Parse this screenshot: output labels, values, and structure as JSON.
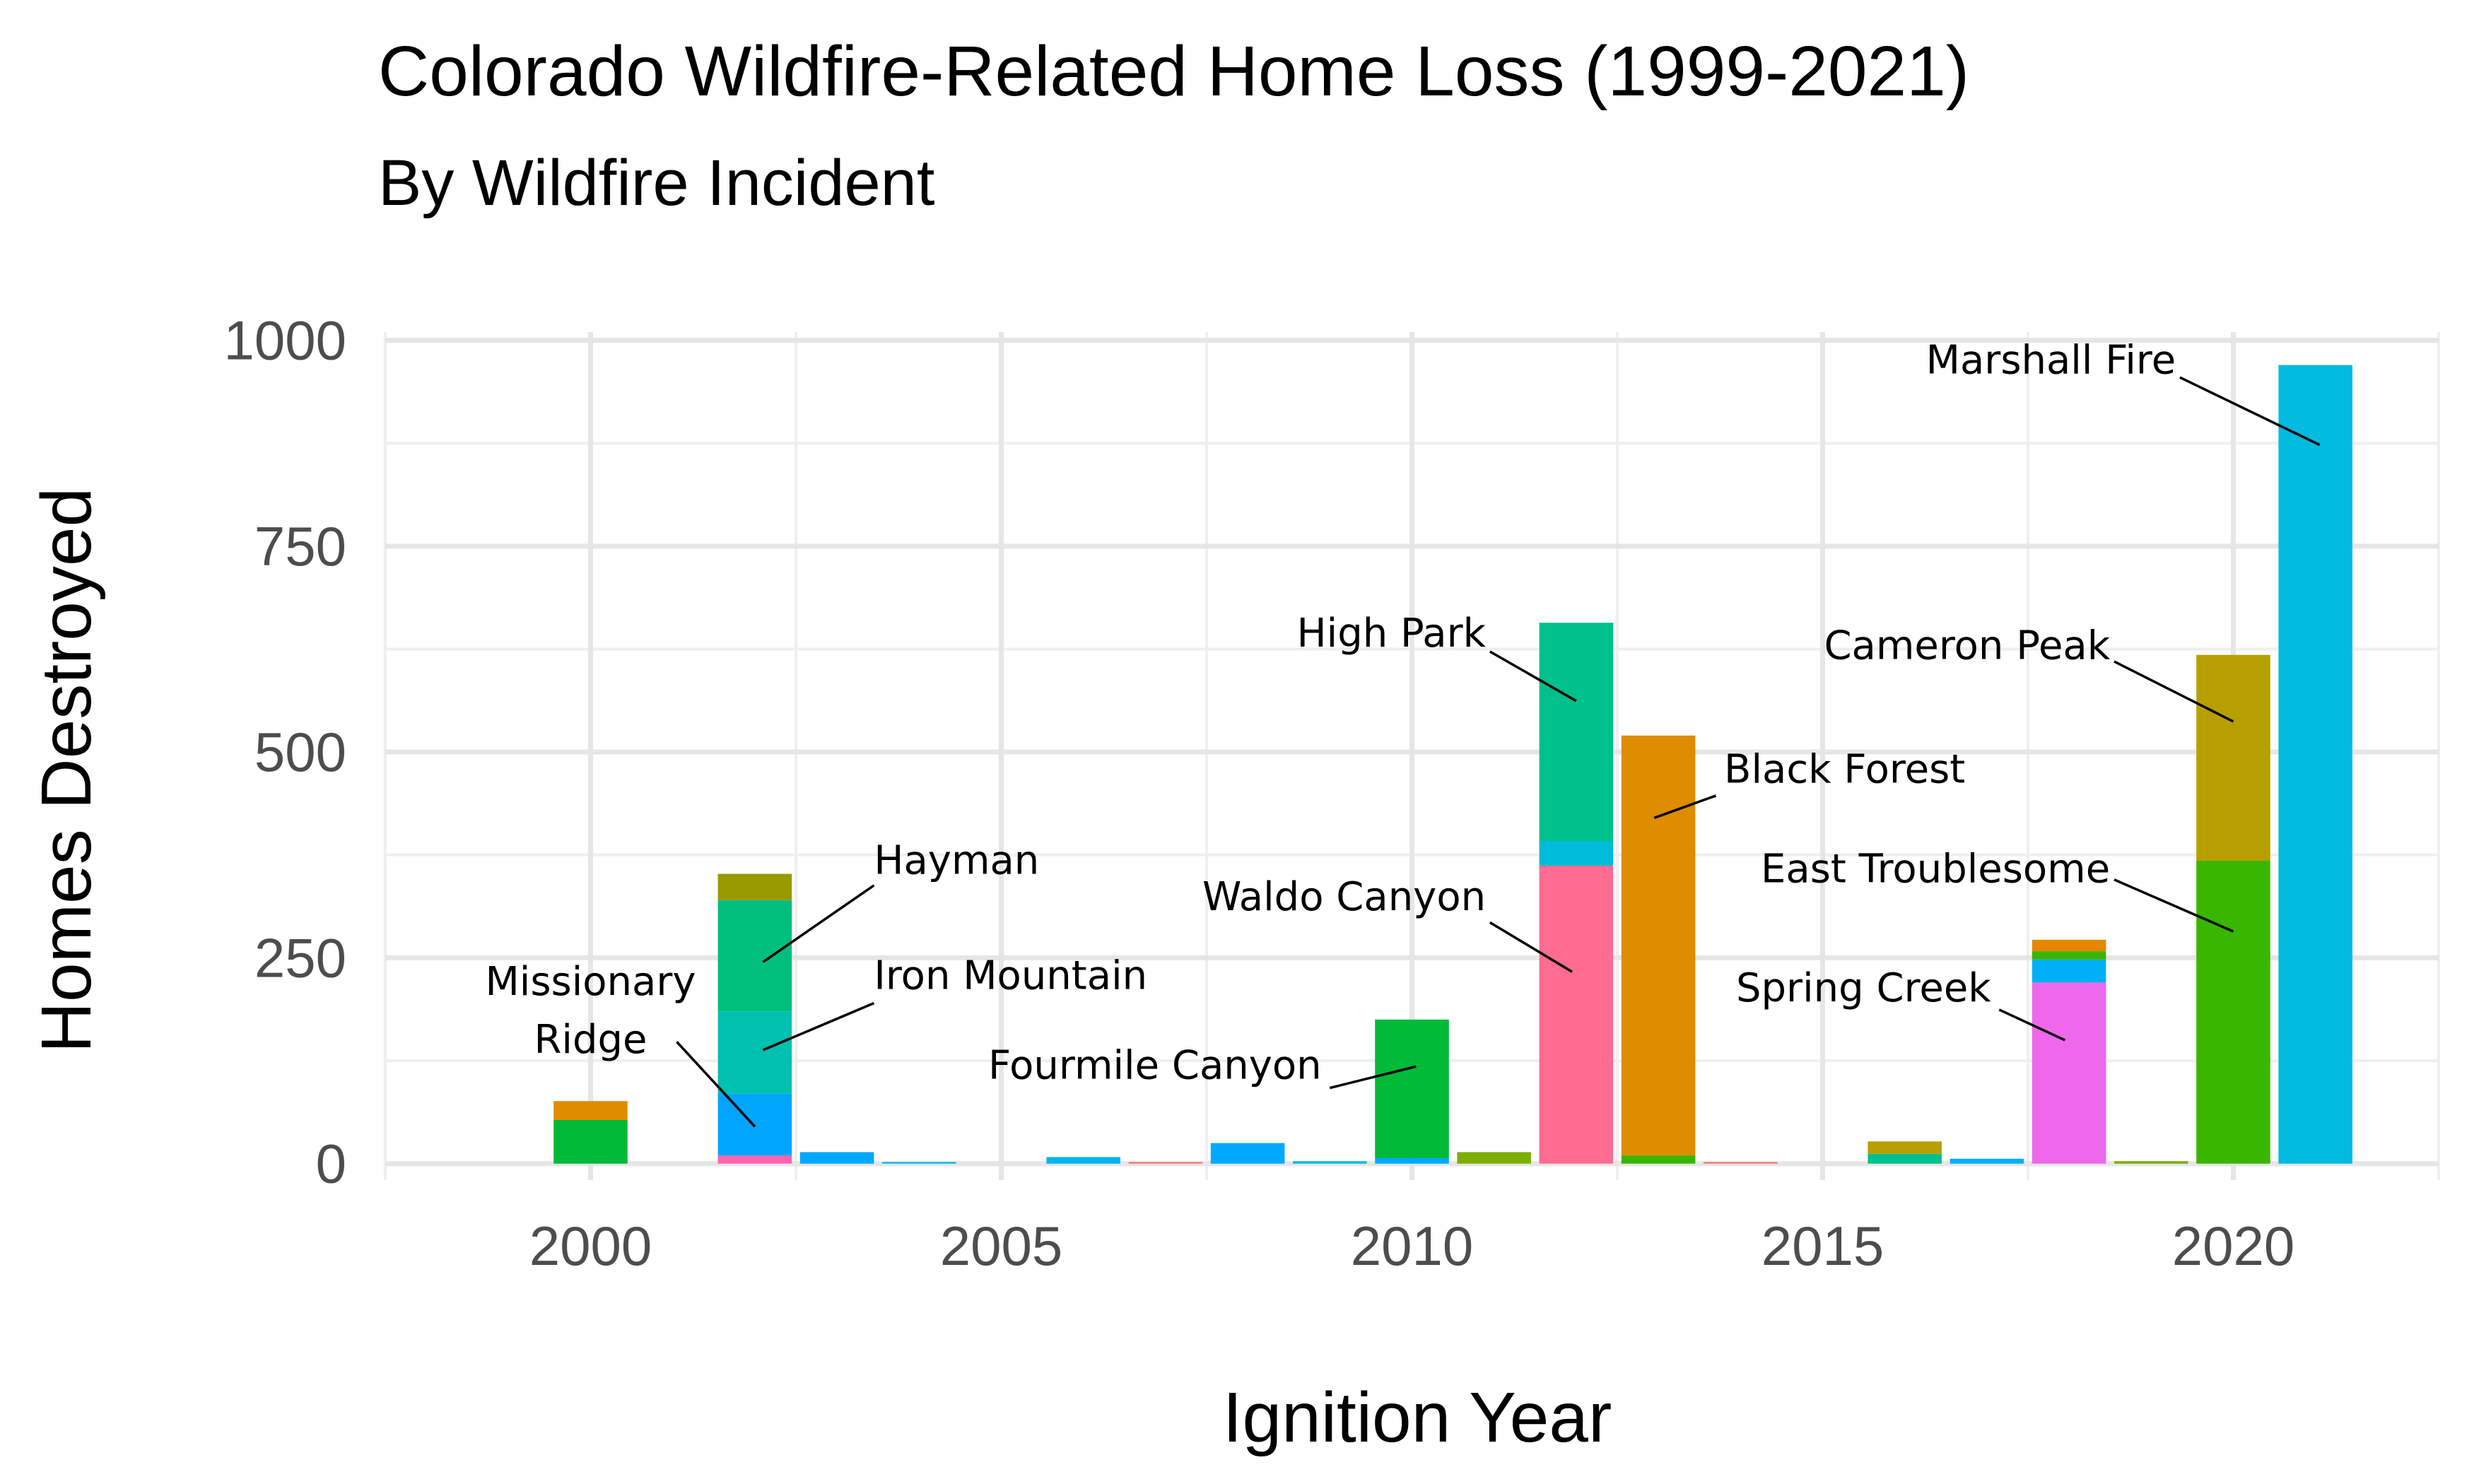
{
  "chart_data": {
    "type": "bar",
    "stacked": true,
    "title": "Colorado Wildfire-Related Home Loss (1999-2021)",
    "subtitle": "By Wildfire Incident",
    "xlabel": "Ignition Year",
    "ylabel": "Homes Destroyed",
    "xlim": [
      1997.5,
      2022.5
    ],
    "ylim": [
      -20,
      1010
    ],
    "x_ticks": [
      2000,
      2005,
      2010,
      2015,
      2020
    ],
    "y_ticks": [
      0,
      250,
      500,
      750,
      1000
    ],
    "grid": true,
    "legend": "none",
    "bars": [
      {
        "year": 2000,
        "segments": [
          {
            "value": 53,
            "color": "#00ba38"
          },
          {
            "value": 23,
            "color": "#de8c00"
          }
        ]
      },
      {
        "year": 2002,
        "segments": [
          {
            "value": 10,
            "color": "#ff64b0"
          },
          {
            "value": 75,
            "color": "#00a5ff"
          },
          {
            "value": 100,
            "color": "#00c0af"
          },
          {
            "value": 135,
            "color": "#00bf7d"
          },
          {
            "value": 32,
            "color": "#999900"
          }
        ]
      },
      {
        "year": 2003,
        "segments": [
          {
            "value": 14,
            "color": "#00a9ff"
          }
        ]
      },
      {
        "year": 2004,
        "segments": [
          {
            "value": 2,
            "color": "#00b8e7"
          }
        ]
      },
      {
        "year": 2006,
        "segments": [
          {
            "value": 8,
            "color": "#00b4f0"
          }
        ]
      },
      {
        "year": 2007,
        "segments": [
          {
            "value": 2,
            "color": "#f8766d"
          }
        ]
      },
      {
        "year": 2008,
        "segments": [
          {
            "value": 25,
            "color": "#00a9ff"
          }
        ]
      },
      {
        "year": 2009,
        "segments": [
          {
            "value": 3,
            "color": "#00b8e7"
          }
        ]
      },
      {
        "year": 2010,
        "segments": [
          {
            "value": 7,
            "color": "#00a9ff"
          },
          {
            "value": 168,
            "color": "#00ba38"
          }
        ]
      },
      {
        "year": 2011,
        "segments": [
          {
            "value": 14,
            "color": "#7cae00"
          }
        ]
      },
      {
        "year": 2012,
        "segments": [
          {
            "value": 362,
            "color": "#ff6c91"
          },
          {
            "value": 30,
            "color": "#00bcd8"
          },
          {
            "value": 265,
            "color": "#00c08b"
          }
        ]
      },
      {
        "year": 2013,
        "segments": [
          {
            "value": 10,
            "color": "#39b600"
          },
          {
            "value": 510,
            "color": "#de8c00"
          }
        ]
      },
      {
        "year": 2014,
        "segments": [
          {
            "value": 2,
            "color": "#f8766d"
          }
        ]
      },
      {
        "year": 2016,
        "segments": [
          {
            "value": 12,
            "color": "#00c08b"
          },
          {
            "value": 15,
            "color": "#b79f00"
          }
        ]
      },
      {
        "year": 2017,
        "segments": [
          {
            "value": 6,
            "color": "#00b0f6"
          }
        ]
      },
      {
        "year": 2018,
        "segments": [
          {
            "value": 220,
            "color": "#ef67eb"
          },
          {
            "value": 28,
            "color": "#00b0f6"
          },
          {
            "value": 10,
            "color": "#39b600"
          },
          {
            "value": 14,
            "color": "#e58700"
          }
        ]
      },
      {
        "year": 2019,
        "segments": [
          {
            "value": 3,
            "color": "#7cae00"
          }
        ]
      },
      {
        "year": 2020,
        "segments": [
          {
            "value": 368,
            "color": "#39b600"
          },
          {
            "value": 250,
            "color": "#b79f00"
          }
        ]
      },
      {
        "year": 2021,
        "segments": [
          {
            "value": 970,
            "color": "#00bae0"
          }
        ]
      }
    ],
    "annotations": [
      {
        "lines": [
          "Missionary",
          "Ridge"
        ],
        "text_x": 2000.0,
        "text_y": 205,
        "anchor": "middle",
        "point_x": 2002.0,
        "point_y": 45,
        "line_from_x": 2001.05,
        "line_from_y": 148
      },
      {
        "lines": [
          "Hayman"
        ],
        "text_x": 2003.45,
        "text_y": 352,
        "anchor": "start",
        "point_x": 2002.1,
        "point_y": 245,
        "line_from_x": 2003.45,
        "line_from_y": 338
      },
      {
        "lines": [
          "Iron Mountain"
        ],
        "text_x": 2003.45,
        "text_y": 212,
        "anchor": "start",
        "point_x": 2002.1,
        "point_y": 138,
        "line_from_x": 2003.45,
        "line_from_y": 195
      },
      {
        "lines": [
          "Fourmile Canyon"
        ],
        "text_x": 2008.9,
        "text_y": 103,
        "anchor": "end",
        "point_x": 2010.05,
        "point_y": 118,
        "line_from_x": 2009.0,
        "line_from_y": 92
      },
      {
        "lines": [
          "High Park"
        ],
        "text_x": 2010.9,
        "text_y": 628,
        "anchor": "end",
        "point_x": 2012.0,
        "point_y": 562,
        "line_from_x": 2010.95,
        "line_from_y": 622
      },
      {
        "lines": [
          "Waldo Canyon"
        ],
        "text_x": 2010.9,
        "text_y": 308,
        "anchor": "end",
        "point_x": 2011.95,
        "point_y": 233,
        "line_from_x": 2010.95,
        "line_from_y": 293
      },
      {
        "lines": [
          "Black Forest"
        ],
        "text_x": 2013.8,
        "text_y": 463,
        "anchor": "start",
        "point_x": 2012.95,
        "point_y": 420,
        "line_from_x": 2013.7,
        "line_from_y": 447
      },
      {
        "lines": [
          "Spring Creek"
        ],
        "text_x": 2017.05,
        "text_y": 197,
        "anchor": "end",
        "point_x": 2017.95,
        "point_y": 150,
        "line_from_x": 2017.15,
        "line_from_y": 187
      },
      {
        "lines": [
          "East Troublesome"
        ],
        "text_x": 2018.5,
        "text_y": 342,
        "anchor": "end",
        "point_x": 2020.0,
        "point_y": 282,
        "line_from_x": 2018.55,
        "line_from_y": 345
      },
      {
        "lines": [
          "Cameron Peak"
        ],
        "text_x": 2018.5,
        "text_y": 613,
        "anchor": "end",
        "point_x": 2020.0,
        "point_y": 537,
        "line_from_x": 2018.55,
        "line_from_y": 610
      },
      {
        "lines": [
          "Marshall Fire"
        ],
        "text_x": 2019.3,
        "text_y": 960,
        "anchor": "end",
        "point_x": 2021.05,
        "point_y": 873,
        "line_from_x": 2019.35,
        "line_from_y": 955
      }
    ]
  }
}
